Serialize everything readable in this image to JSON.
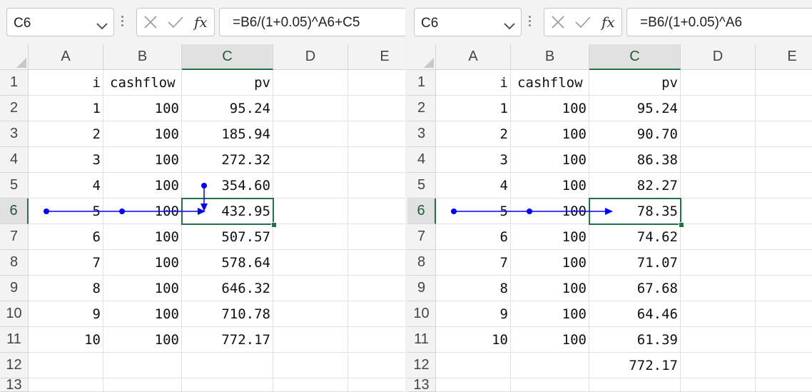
{
  "columns": [
    "A",
    "B",
    "C",
    "D",
    "E"
  ],
  "rows": [
    "1",
    "2",
    "3",
    "4",
    "5",
    "6",
    "7",
    "8",
    "9",
    "10",
    "11",
    "12",
    "13"
  ],
  "left": {
    "namebox": "C6",
    "formula": "=B6/(1+0.05)^A6+C5",
    "cells": [
      [
        "i",
        "cashflow",
        "pv"
      ],
      [
        "1",
        "100",
        "95.24"
      ],
      [
        "2",
        "100",
        "185.94"
      ],
      [
        "3",
        "100",
        "272.32"
      ],
      [
        "4",
        "100",
        "354.60"
      ],
      [
        "5",
        "100",
        "432.95"
      ],
      [
        "6",
        "100",
        "507.57"
      ],
      [
        "7",
        "100",
        "578.64"
      ],
      [
        "8",
        "100",
        "646.32"
      ],
      [
        "9",
        "100",
        "710.78"
      ],
      [
        "10",
        "100",
        "772.17"
      ],
      [
        "",
        "",
        ""
      ],
      [
        "",
        "",
        ""
      ]
    ]
  },
  "right": {
    "namebox": "C6",
    "formula": "=B6/(1+0.05)^A6",
    "cells": [
      [
        "i",
        "cashflow",
        "pv"
      ],
      [
        "1",
        "100",
        "95.24"
      ],
      [
        "2",
        "100",
        "90.70"
      ],
      [
        "3",
        "100",
        "86.38"
      ],
      [
        "4",
        "100",
        "82.27"
      ],
      [
        "5",
        "100",
        "78.35"
      ],
      [
        "6",
        "100",
        "74.62"
      ],
      [
        "7",
        "100",
        "71.07"
      ],
      [
        "8",
        "100",
        "67.68"
      ],
      [
        "9",
        "100",
        "64.46"
      ],
      [
        "10",
        "100",
        "61.39"
      ],
      [
        "",
        "",
        "772.17"
      ],
      [
        "",
        "",
        ""
      ]
    ]
  },
  "ui": {
    "fx_label": "fx",
    "active_cell": "C6",
    "accent_color": "#217346",
    "trace_arrow_color": "#0000ff",
    "icons": {
      "cancel": "close-icon",
      "confirm": "check-icon",
      "function": "fx-icon",
      "dropdown": "chevron-down-icon"
    }
  }
}
